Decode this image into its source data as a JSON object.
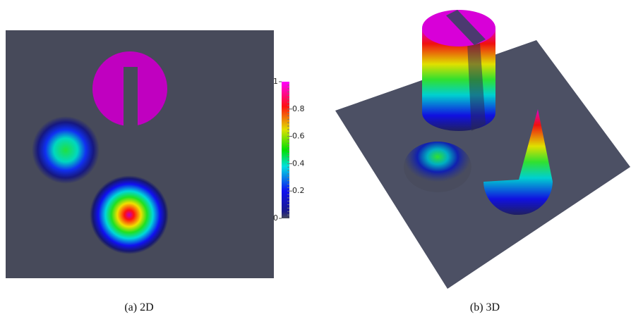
{
  "colorbar": {
    "range": [
      0,
      1
    ],
    "ticks": [
      0,
      0.2,
      0.4,
      0.6,
      0.8,
      1
    ]
  },
  "captions": [
    "(a) 2D",
    "(b) 3D"
  ]
}
